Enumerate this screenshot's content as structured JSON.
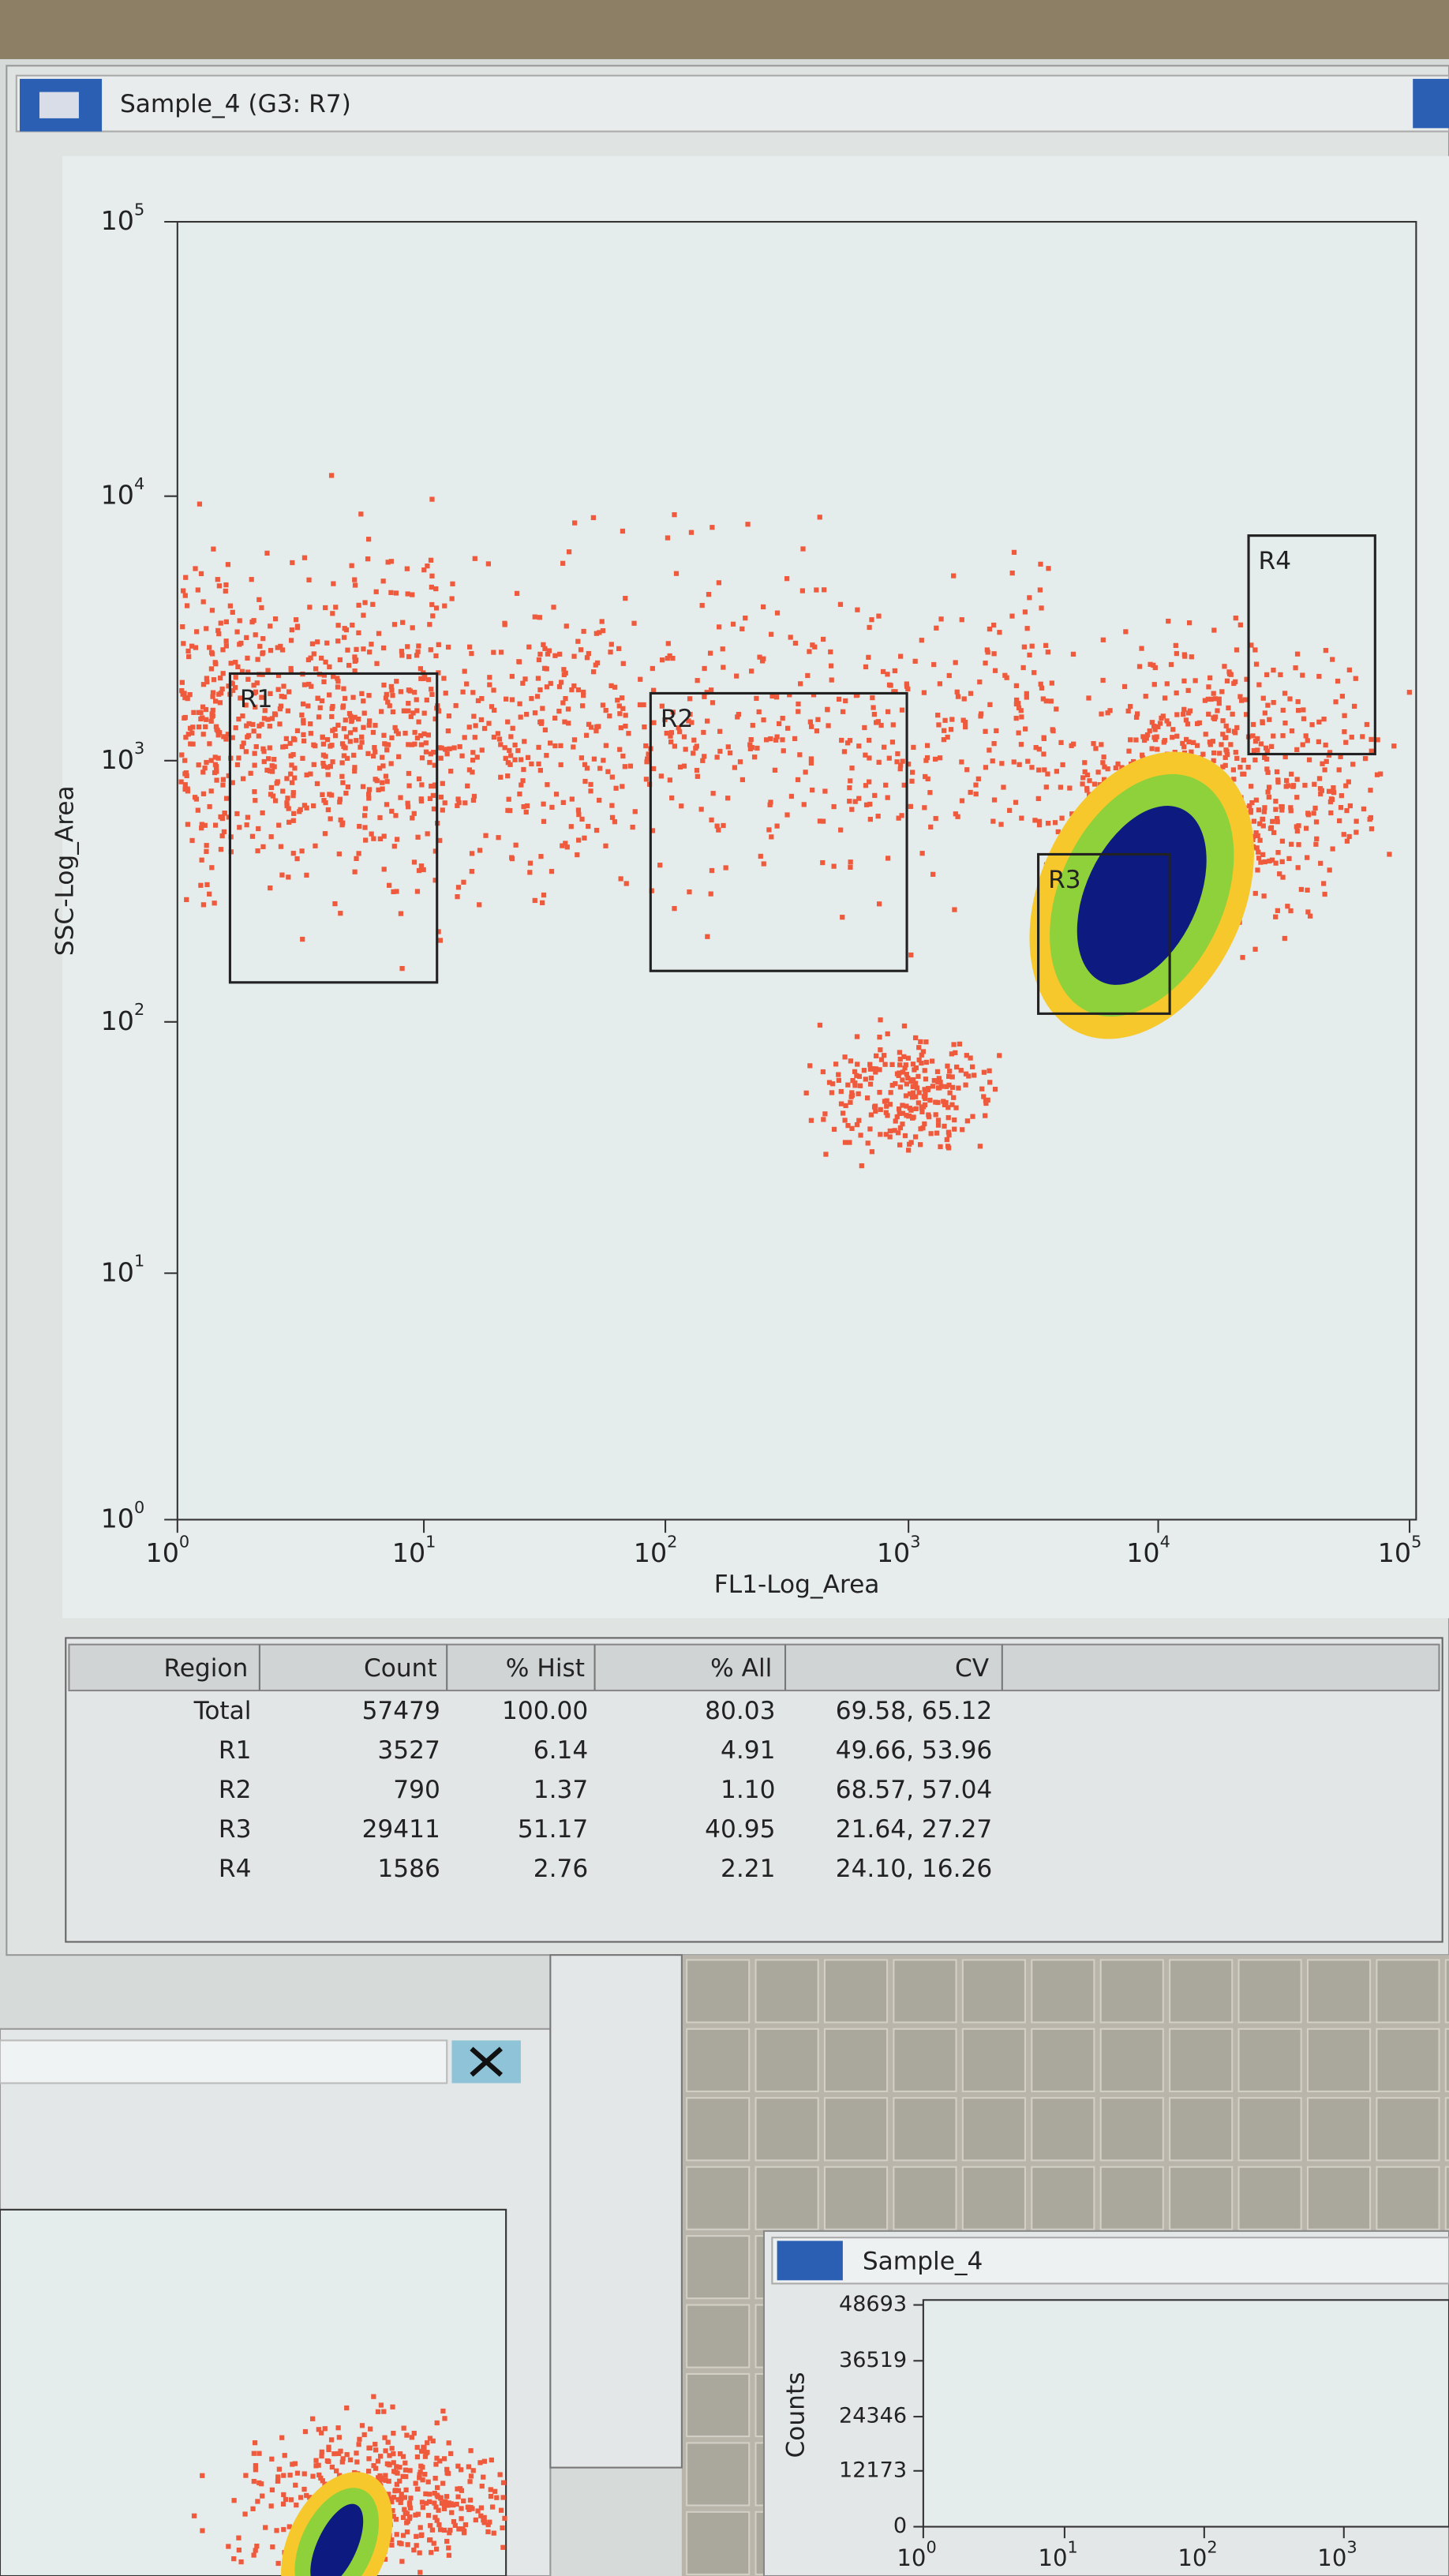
{
  "main_window": {
    "title": "Sample_4  (G3: R7)",
    "plot": {
      "x_axis_label": "FL1-Log_Area",
      "y_axis_label": "SSC-Log_Area",
      "xticks": [
        {
          "base": "10",
          "exp": "0"
        },
        {
          "base": "10",
          "exp": "1"
        },
        {
          "base": "10",
          "exp": "2"
        },
        {
          "base": "10",
          "exp": "3"
        },
        {
          "base": "10",
          "exp": "4"
        },
        {
          "base": "10",
          "exp": "5"
        }
      ],
      "yticks": [
        {
          "base": "10",
          "exp": "5"
        },
        {
          "base": "10",
          "exp": "4"
        },
        {
          "base": "10",
          "exp": "3"
        },
        {
          "base": "10",
          "exp": "2"
        },
        {
          "base": "10",
          "exp": "1"
        },
        {
          "base": "10",
          "exp": "0"
        }
      ],
      "regions": [
        "R1",
        "R2",
        "R3",
        "R4"
      ]
    },
    "stats_table": {
      "columns": [
        "Region",
        "Count",
        "% Hist",
        "% All",
        "CV"
      ],
      "rows": [
        [
          "Total",
          "57479",
          "100.00",
          "80.03",
          "69.58, 65.12"
        ],
        [
          "R1",
          "3527",
          "6.14",
          "4.91",
          "49.66, 53.96"
        ],
        [
          "R2",
          "790",
          "1.37",
          "1.10",
          "68.57, 57.04"
        ],
        [
          "R3",
          "29411",
          "51.17",
          "40.95",
          "21.64, 27.27"
        ],
        [
          "R4",
          "1586",
          "2.76",
          "2.21",
          "24.10, 16.26"
        ]
      ]
    }
  },
  "histogram_window": {
    "title": "Sample_4",
    "y_axis_label": "Counts",
    "yticks": [
      "48693",
      "36519",
      "24346",
      "12173",
      "0"
    ],
    "xticks": [
      {
        "base": "10",
        "exp": "0"
      },
      {
        "base": "10",
        "exp": "1"
      },
      {
        "base": "10",
        "exp": "2"
      },
      {
        "base": "10",
        "exp": "3"
      }
    ]
  }
}
